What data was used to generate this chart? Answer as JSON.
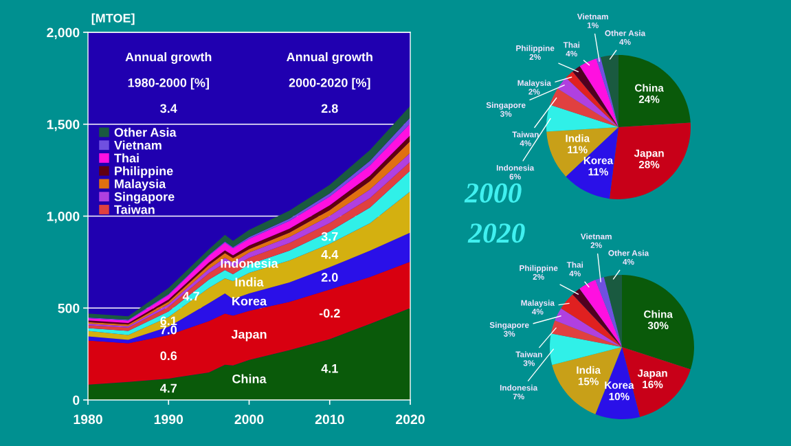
{
  "chart_data": [
    {
      "type": "area",
      "stacked": true,
      "ylabel": "[MTOE]",
      "x": [
        1980,
        1985,
        1990,
        1995,
        1997,
        1998,
        2000,
        2005,
        2010,
        2015,
        2020
      ],
      "xlim": [
        1980,
        2020
      ],
      "xticks": [
        1980,
        1990,
        2000,
        2010,
        2020
      ],
      "ylim": [
        0,
        2000
      ],
      "yticks": [
        0,
        {
          "value": 500,
          "label": "500"
        },
        {
          "value": 1000,
          "label": "1,000"
        },
        {
          "value": 1500,
          "label": "1,500"
        },
        {
          "value": 2000,
          "label": "2,000"
        }
      ],
      "grid": "y",
      "legend": "left",
      "series": [
        {
          "name": "China",
          "color": "#0a5a0a",
          "values": [
            83,
            98,
            116,
            150,
            192,
            188,
            218,
            271,
            331,
            414,
            500
          ]
        },
        {
          "name": "Japan",
          "color": "#d80010",
          "values": [
            240,
            210,
            237,
            279,
            278,
            271,
            267,
            263,
            270,
            255,
            252
          ]
        },
        {
          "name": "Korea",
          "color": "#2a10e8",
          "values": [
            23,
            19,
            45,
            97,
            109,
            90,
            94,
            105,
            121,
            143,
            158
          ]
        },
        {
          "name": "India",
          "color": "#d4b010",
          "values": [
            30,
            26,
            53,
            83,
            83,
            98,
            113,
            120,
            128,
            150,
            225
          ]
        },
        {
          "name": "Indonesia",
          "color": "#30f0e8",
          "values": [
            15,
            23,
            30,
            45,
            45,
            37,
            45,
            53,
            67,
            85,
            113
          ]
        },
        {
          "name": "Taiwan",
          "color": "#e04040",
          "values": [
            16,
            17,
            26,
            36,
            40,
            38,
            37,
            42,
            46,
            52,
            48
          ]
        },
        {
          "name": "Singapore",
          "color": "#b040e0",
          "values": [
            8,
            8,
            14,
            22,
            26,
            26,
            28,
            32,
            38,
            46,
            48
          ]
        },
        {
          "name": "Malaysia",
          "color": "#e07010",
          "values": [
            8,
            9,
            14,
            22,
            26,
            24,
            19,
            24,
            32,
            46,
            64
          ]
        },
        {
          "name": "Philippine",
          "color": "#600010",
          "values": [
            10,
            9,
            12,
            14,
            15,
            15,
            19,
            22,
            26,
            30,
            32
          ]
        },
        {
          "name": "Thai",
          "color": "#ff10e0",
          "values": [
            12,
            13,
            24,
            36,
            42,
            38,
            37,
            42,
            48,
            56,
            64
          ]
        },
        {
          "name": "Vietnam",
          "color": "#7050e0",
          "values": [
            4,
            4,
            5,
            5,
            6,
            6,
            9,
            12,
            16,
            24,
            32
          ]
        },
        {
          "name": "Other Asia",
          "color": "#1a5a40",
          "values": [
            21,
            19,
            33,
            31,
            36,
            34,
            39,
            44,
            47,
            59,
            64
          ]
        }
      ],
      "annotations": [
        "Annual growth",
        "Annual growth",
        "1980-2000 [%]",
        "2000-2020 [%]",
        "3.4",
        "2.8",
        "4.7",
        "0.6",
        "7.0",
        "6.1",
        "4.7",
        "4.1",
        "-0.2",
        "2.0",
        "4.4",
        "3.7"
      ]
    },
    {
      "type": "pie",
      "title": "2000",
      "categories": [
        "China",
        "Japan",
        "Korea",
        "India",
        "Indonesia",
        "Taiwan",
        "Singapore",
        "Malaysia",
        "Philippine",
        "Thai",
        "Vietnam",
        "Other Asia"
      ],
      "values": [
        24,
        28,
        11,
        11,
        6,
        4,
        3,
        2,
        2,
        4,
        1,
        4
      ],
      "value_labels": [
        "24%",
        "28%",
        "11%",
        "11%",
        "6%",
        "4%",
        "3%",
        "2%",
        "2%",
        "4%",
        "1%",
        "4%"
      ],
      "colors": [
        "#0a5a0a",
        "#c80018",
        "#2a10e8",
        "#c8a018",
        "#30f0e8",
        "#e04040",
        "#b040e0",
        "#e02020",
        "#500020",
        "#ff10e0",
        "#7050e0",
        "#1a5a40"
      ]
    },
    {
      "type": "pie",
      "title": "2020",
      "categories": [
        "China",
        "Japan",
        "Korea",
        "India",
        "Indonesia",
        "Taiwan",
        "Singapore",
        "Malaysia",
        "Philippine",
        "Thai",
        "Vietnam",
        "Other Asia"
      ],
      "values": [
        30,
        16,
        10,
        15,
        7,
        3,
        3,
        4,
        2,
        4,
        2,
        4
      ],
      "value_labels": [
        "30%",
        "16%",
        "10%",
        "15%",
        "7%",
        "3%",
        "3%",
        "4%",
        "2%",
        "4%",
        "2%",
        "4%"
      ],
      "colors": [
        "#0a5a0a",
        "#c80018",
        "#2a10e8",
        "#c8a018",
        "#30f0e8",
        "#e04040",
        "#b040e0",
        "#e02020",
        "#500020",
        "#ff10e0",
        "#7050e0",
        "#1a5a40"
      ]
    }
  ]
}
